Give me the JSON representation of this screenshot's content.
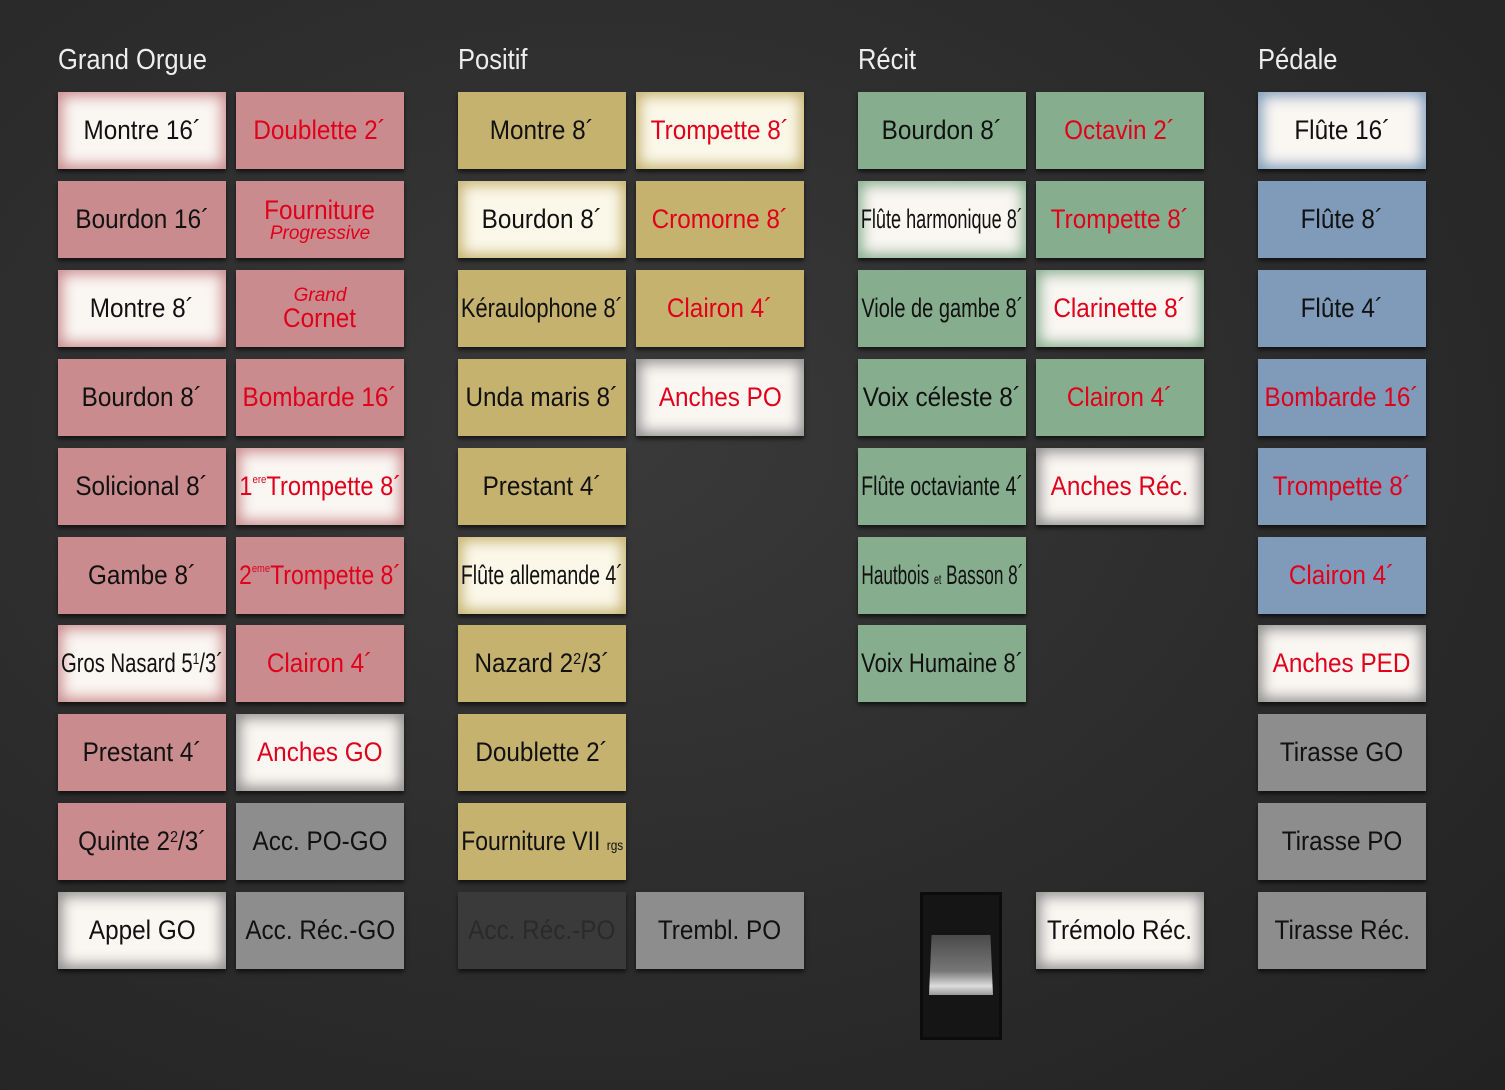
{
  "divisions": [
    {
      "title": "Grand Orgue",
      "columns": [
        [
          {
            "parts": [
              {
                "t": "Montre 16´"
              }
            ],
            "color": "red",
            "on": true
          },
          {
            "parts": [
              {
                "t": "Bourdon 16´"
              }
            ],
            "color": "red"
          },
          {
            "parts": [
              {
                "t": "Montre 8´"
              }
            ],
            "color": "red",
            "on": true
          },
          {
            "parts": [
              {
                "t": "Bourdon 8´"
              }
            ],
            "color": "red"
          },
          {
            "parts": [
              {
                "t": "Solicional 8´"
              }
            ],
            "color": "red"
          },
          {
            "parts": [
              {
                "t": "Gambe 8´"
              }
            ],
            "color": "red"
          },
          {
            "parts": [
              {
                "t": "Gros Nasard 5"
              },
              {
                "t": "1",
                "sup": true
              },
              {
                "t": "/3´"
              }
            ],
            "color": "red",
            "on": true
          },
          {
            "parts": [
              {
                "t": "Prestant 4´"
              }
            ],
            "color": "red"
          },
          {
            "parts": [
              {
                "t": "Quinte 2"
              },
              {
                "t": "2",
                "sup": true
              },
              {
                "t": "/3´"
              }
            ],
            "color": "red"
          },
          {
            "parts": [
              {
                "t": "Appel GO"
              }
            ],
            "color": "gry",
            "on": true
          }
        ],
        [
          {
            "parts": [
              {
                "t": "Doublette 2´"
              }
            ],
            "color": "red",
            "reed": true
          },
          {
            "parts": [
              {
                "t": "Fourniture"
              }
            ],
            "sub": "Progressive",
            "color": "red",
            "reed": true
          },
          {
            "pre": "Grand",
            "parts": [
              {
                "t": "Cornet"
              }
            ],
            "color": "red",
            "reed": true
          },
          {
            "parts": [
              {
                "t": "Bombarde 16´"
              }
            ],
            "color": "red",
            "reed": true
          },
          {
            "parts": [
              {
                "t": "1"
              },
              {
                "t": "ere",
                "tiny": true
              },
              {
                "t": "Trompette 8´"
              }
            ],
            "color": "red",
            "reed": true,
            "on": true
          },
          {
            "parts": [
              {
                "t": "2"
              },
              {
                "t": "eme",
                "tiny": true
              },
              {
                "t": "Trompette 8´"
              }
            ],
            "color": "red",
            "reed": true
          },
          {
            "parts": [
              {
                "t": "Clairon 4´"
              }
            ],
            "color": "red",
            "reed": true
          },
          {
            "parts": [
              {
                "t": "Anches GO"
              }
            ],
            "color": "gry",
            "reed": true,
            "on": true
          },
          {
            "parts": [
              {
                "t": "Acc. PO-GO"
              }
            ],
            "color": "gry"
          },
          {
            "parts": [
              {
                "t": "Acc. Réc.-GO"
              }
            ],
            "color": "gry"
          }
        ]
      ]
    },
    {
      "title": "Positif",
      "columns": [
        [
          {
            "parts": [
              {
                "t": "Montre 8´"
              }
            ],
            "color": "yel"
          },
          {
            "parts": [
              {
                "t": "Bourdon 8´"
              }
            ],
            "color": "yel",
            "on": true
          },
          {
            "parts": [
              {
                "t": "Kéraulophone 8´"
              }
            ],
            "color": "yel"
          },
          {
            "parts": [
              {
                "t": "Unda maris 8´"
              }
            ],
            "color": "yel"
          },
          {
            "parts": [
              {
                "t": "Prestant 4´"
              }
            ],
            "color": "yel"
          },
          {
            "parts": [
              {
                "t": "Flûte allemande 4´"
              }
            ],
            "color": "yel",
            "on": true
          },
          {
            "parts": [
              {
                "t": "Nazard 2"
              },
              {
                "t": "2",
                "sup": true
              },
              {
                "t": "/3´"
              }
            ],
            "color": "yel"
          },
          {
            "parts": [
              {
                "t": "Doublette 2´"
              }
            ],
            "color": "yel"
          },
          {
            "parts": [
              {
                "t": "Fourniture VII "
              },
              {
                "t": "rgs",
                "small": true
              }
            ],
            "color": "yel"
          },
          {
            "parts": [
              {
                "t": "Acc. Réc.-PO"
              }
            ],
            "color": "dis"
          }
        ],
        [
          {
            "parts": [
              {
                "t": "Trompette 8´"
              }
            ],
            "color": "yel",
            "reed": true,
            "on": true
          },
          {
            "parts": [
              {
                "t": "Cromorne 8´"
              }
            ],
            "color": "yel",
            "reed": true
          },
          {
            "parts": [
              {
                "t": "Clairon 4´"
              }
            ],
            "color": "yel",
            "reed": true
          },
          {
            "parts": [
              {
                "t": "Anches PO"
              }
            ],
            "color": "gry",
            "reed": true,
            "on": true
          },
          null,
          null,
          null,
          null,
          null,
          {
            "parts": [
              {
                "t": "Trembl. PO"
              }
            ],
            "color": "gry"
          }
        ]
      ]
    },
    {
      "title": "Récit",
      "columns": [
        [
          {
            "parts": [
              {
                "t": "Bourdon 8´"
              }
            ],
            "color": "grn"
          },
          {
            "parts": [
              {
                "t": "Flûte harmonique 8´"
              }
            ],
            "color": "grn",
            "on": true
          },
          {
            "parts": [
              {
                "t": "Viole de gambe 8´"
              }
            ],
            "color": "grn"
          },
          {
            "parts": [
              {
                "t": "Voix céleste 8´"
              }
            ],
            "color": "grn"
          },
          {
            "parts": [
              {
                "t": "Flûte octaviante 4´"
              }
            ],
            "color": "grn"
          },
          {
            "parts": [
              {
                "t": "Hautbois "
              },
              {
                "t": "et",
                "small": true
              },
              {
                "t": " Basson 8´"
              }
            ],
            "color": "grn"
          },
          {
            "parts": [
              {
                "t": "Voix Humaine 8´"
              }
            ],
            "color": "grn"
          },
          null,
          null,
          null
        ],
        [
          {
            "parts": [
              {
                "t": "Octavin 2´"
              }
            ],
            "color": "grn",
            "reed": true
          },
          {
            "parts": [
              {
                "t": "Trompette 8´"
              }
            ],
            "color": "grn",
            "reed": true
          },
          {
            "parts": [
              {
                "t": "Clarinette 8´"
              }
            ],
            "color": "grn",
            "reed": true,
            "on": true
          },
          {
            "parts": [
              {
                "t": "Clairon 4´"
              }
            ],
            "color": "grn",
            "reed": true
          },
          {
            "parts": [
              {
                "t": "Anches Réc."
              }
            ],
            "color": "gry",
            "reed": true,
            "on": true
          },
          null,
          null,
          null,
          null,
          {
            "parts": [
              {
                "t": "Trémolo Réc."
              }
            ],
            "color": "gry",
            "on": true
          }
        ]
      ]
    },
    {
      "title": "Pédale",
      "columns": [
        [
          {
            "parts": [
              {
                "t": "Flûte 16´"
              }
            ],
            "color": "blu",
            "on": true
          },
          {
            "parts": [
              {
                "t": "Flûte 8´"
              }
            ],
            "color": "blu"
          },
          {
            "parts": [
              {
                "t": "Flûte 4´"
              }
            ],
            "color": "blu"
          },
          {
            "parts": [
              {
                "t": "Bombarde 16´"
              }
            ],
            "color": "blu",
            "reed": true
          },
          {
            "parts": [
              {
                "t": "Trompette 8´"
              }
            ],
            "color": "blu",
            "reed": true
          },
          {
            "parts": [
              {
                "t": "Clairon 4´"
              }
            ],
            "color": "blu",
            "reed": true
          },
          {
            "parts": [
              {
                "t": "Anches PED"
              }
            ],
            "color": "gry",
            "reed": true,
            "on": true
          },
          {
            "parts": [
              {
                "t": "Tirasse GO"
              }
            ],
            "color": "gry"
          },
          {
            "parts": [
              {
                "t": "Tirasse PO"
              }
            ],
            "color": "gry"
          },
          {
            "parts": [
              {
                "t": "Tirasse Réc."
              }
            ],
            "color": "gry"
          }
        ]
      ]
    }
  ],
  "expression_pedal": {
    "icon": "rocker-switch-icon",
    "position": 0.5
  }
}
